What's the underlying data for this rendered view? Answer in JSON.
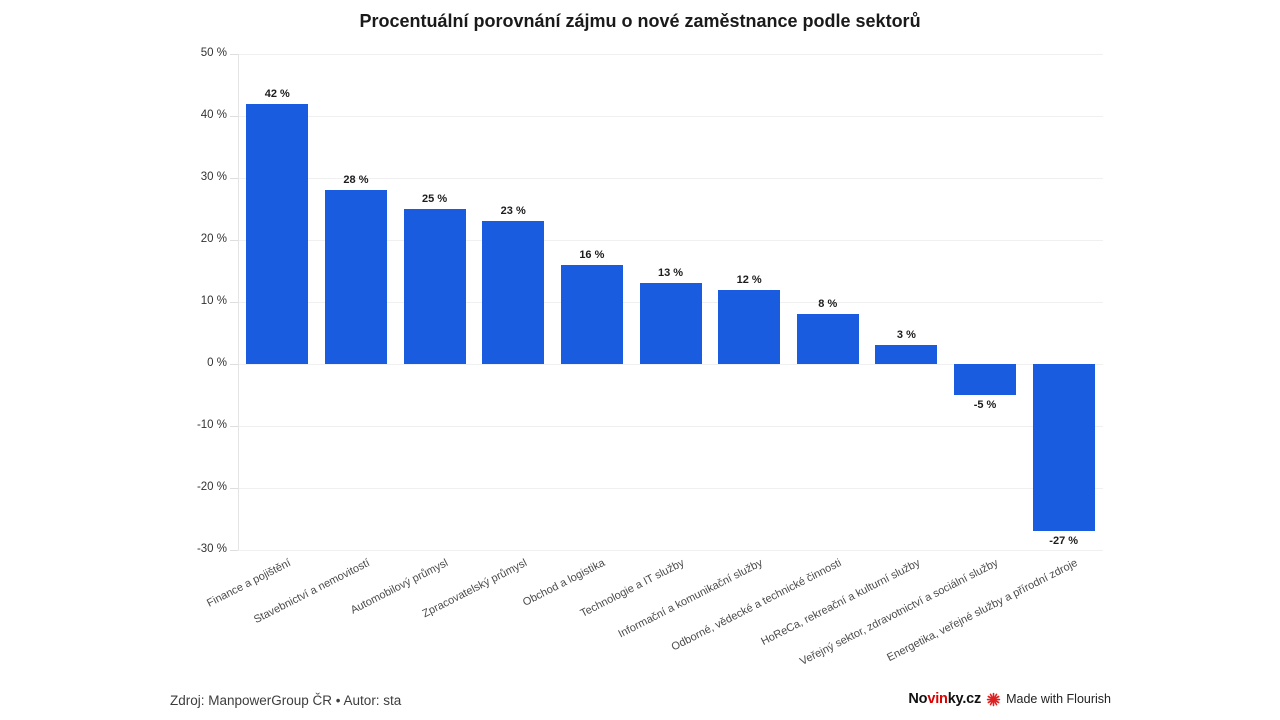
{
  "chart_data": {
    "type": "bar",
    "title": "Procentuální porovnání zájmu o nové zaměstnance podle sektorů",
    "categories": [
      "Finance a pojištění",
      "Stavebnictví a nemovitostí",
      "Automobilový průmysl",
      "Zpracovatelský průmysl",
      "Obchod a logistika",
      "Technologie a IT služby",
      "Informační a komunikační služby",
      "Odborné, vědecké a technické činnosti",
      "HoReCa, rekreační a kulturní služby",
      "Veřejný sektor, zdravotnictví a sociální služby",
      "Energetika, veřejné služby a přírodní zdroje"
    ],
    "values": [
      42,
      28,
      25,
      23,
      16,
      13,
      12,
      8,
      3,
      -5,
      -27
    ],
    "value_labels": [
      "42 %",
      "28 %",
      "25 %",
      "23 %",
      "16 %",
      "13 %",
      "12 %",
      "8 %",
      "3 %",
      "-5 %",
      "-27 %"
    ],
    "xlabel": "",
    "ylabel": "",
    "ylim": [
      -30,
      50
    ],
    "y_ticks": [
      50,
      40,
      30,
      20,
      10,
      0,
      -10,
      -20,
      -30
    ],
    "y_tick_labels": [
      "50 %",
      "40 %",
      "30 %",
      "20 %",
      "10 %",
      "0 %",
      "-10 %",
      "-20 %",
      "-30 %"
    ],
    "grid": "horizontal-only",
    "legend": "none",
    "bar_color": "#1a5ce0",
    "label_rotation_deg": -27
  },
  "footer": {
    "source": "Zdroj: ManpowerGroup ČR • Autor: sta"
  },
  "branding": {
    "novinky": {
      "black1": "No",
      "red": "vin",
      "black2": "ky.cz"
    },
    "flourish_icon": "flourish-burst-icon",
    "flourish_text": "Made with Flourish"
  }
}
